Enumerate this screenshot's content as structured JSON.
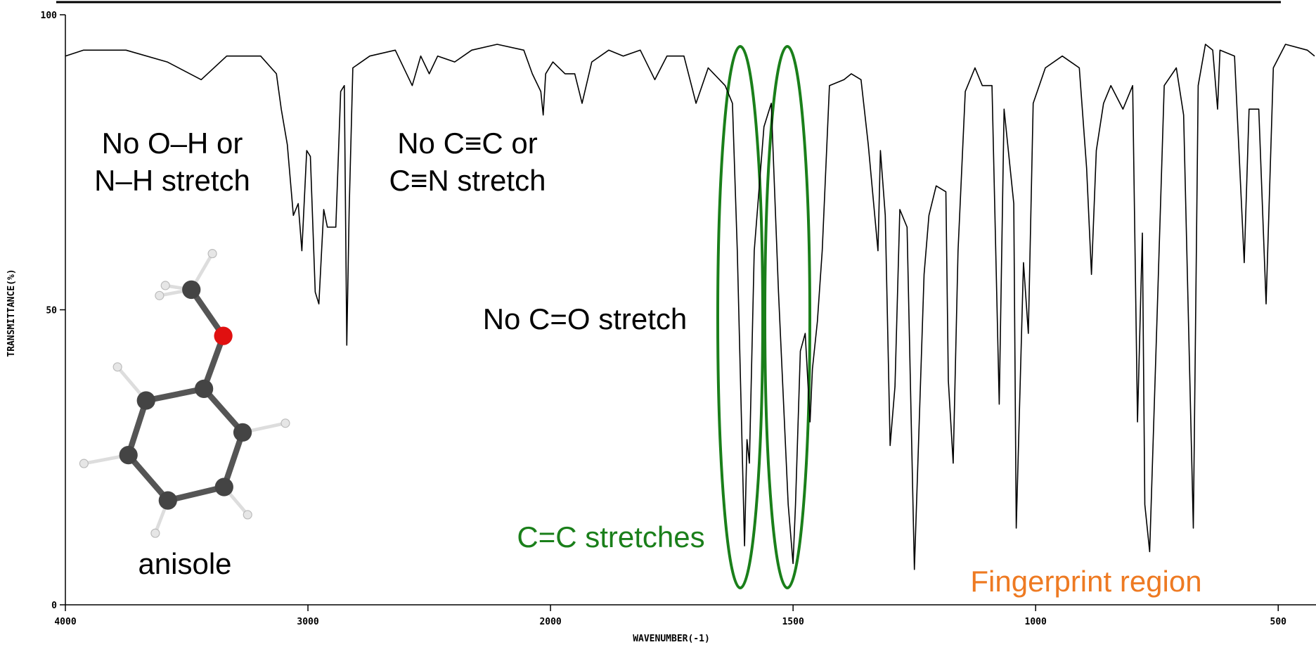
{
  "chart_data": {
    "type": "line",
    "x_label": "WAVENUMBER(-1)",
    "y_label": "TRANSMITTANCE(%)",
    "x": [
      4000,
      3925,
      3750,
      3580,
      3440,
      3335,
      3195,
      3130,
      3110,
      3085,
      3060,
      3040,
      3025,
      3005,
      2990,
      2970,
      2955,
      2935,
      2920,
      2885,
      2865,
      2850,
      2840,
      2830,
      2815,
      2745,
      2640,
      2570,
      2535,
      2500,
      2465,
      2395,
      2325,
      2220,
      2110,
      2075,
      2040,
      2030,
      2020,
      1995,
      1970,
      1950,
      1935,
      1915,
      1880,
      1850,
      1815,
      1785,
      1760,
      1725,
      1700,
      1675,
      1640,
      1625,
      1615,
      1600,
      1595,
      1590,
      1580,
      1560,
      1545,
      1530,
      1510,
      1500,
      1495,
      1485,
      1475,
      1465,
      1460,
      1450,
      1440,
      1425,
      1395,
      1380,
      1360,
      1345,
      1325,
      1320,
      1310,
      1300,
      1290,
      1280,
      1265,
      1250,
      1230,
      1220,
      1205,
      1185,
      1180,
      1170,
      1160,
      1145,
      1125,
      1110,
      1090,
      1075,
      1065,
      1045,
      1040,
      1025,
      1015,
      1005,
      980,
      945,
      910,
      895,
      885,
      875,
      860,
      845,
      820,
      800,
      790,
      780,
      775,
      765,
      750,
      735,
      710,
      695,
      675,
      665,
      650,
      635,
      625,
      620,
      590,
      570,
      560,
      540,
      525,
      510,
      485,
      440,
      425
    ],
    "values": [
      93,
      94,
      94,
      92,
      89,
      93,
      93,
      90,
      84,
      78,
      66,
      68,
      60,
      77,
      76,
      53,
      51,
      67,
      64,
      64,
      87,
      88,
      44,
      67,
      91,
      93,
      94,
      88,
      93,
      90,
      93,
      92,
      94,
      95,
      94,
      90,
      87,
      83,
      90,
      92,
      90,
      90,
      85,
      92,
      94,
      93,
      94,
      89,
      93,
      93,
      85,
      91,
      88,
      85,
      60,
      10,
      28,
      24,
      60,
      81,
      85,
      53,
      17,
      7,
      17,
      43,
      46,
      31,
      40,
      48,
      60,
      88,
      89,
      90,
      89,
      78,
      60,
      77,
      66,
      27,
      37,
      67,
      64,
      6,
      56,
      66,
      71,
      70,
      38,
      24,
      60,
      87,
      91,
      88,
      88,
      34,
      84,
      68,
      13,
      58,
      46,
      85,
      91,
      93,
      91,
      74,
      56,
      77,
      85,
      88,
      84,
      88,
      31,
      63,
      17,
      9,
      48,
      88,
      91,
      83,
      13,
      88,
      95,
      94,
      84,
      94,
      93,
      58,
      84,
      84,
      51,
      91,
      95,
      94,
      93
    ],
    "color": "#000000",
    "xlim": [
      4000,
      425
    ],
    "xticks": [
      4000,
      3000,
      2000,
      1500,
      1000,
      500
    ],
    "ylim": [
      0,
      100
    ],
    "yticks": [
      0,
      50,
      100
    ],
    "annotations": [
      {
        "lines": [
          "No O–H or",
          "N–H stretch"
        ],
        "color": "#000000"
      },
      {
        "lines": [
          "No C≡C or",
          "C≡N stretch"
        ],
        "color": "#000000"
      },
      {
        "lines": [
          "No C=O stretch"
        ],
        "color": "#000000"
      },
      {
        "lines": [
          "C=C stretches"
        ],
        "color": "#1a7f1a"
      },
      {
        "lines": [
          "anisole"
        ],
        "color": "#000000"
      },
      {
        "lines": [
          "Fingerprint region"
        ],
        "color": "#ee7a22"
      }
    ]
  }
}
